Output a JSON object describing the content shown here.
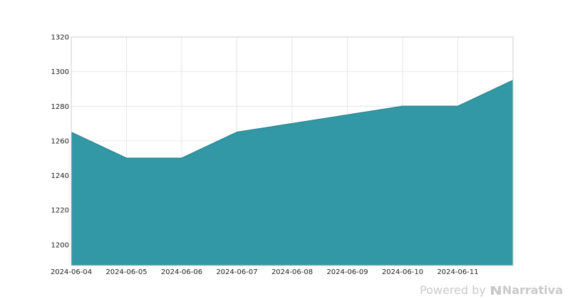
{
  "chart_data": {
    "type": "area",
    "x": [
      "2024-06-04",
      "2024-06-05",
      "2024-06-06",
      "2024-06-07",
      "2024-06-08",
      "2024-06-09",
      "2024-06-10",
      "2024-06-11",
      "2024-06-12"
    ],
    "x_tick_labels": [
      "2024-06-04",
      "2024-06-05",
      "2024-06-06",
      "2024-06-07",
      "2024-06-08",
      "2024-06-09",
      "2024-06-10",
      "2024-06-11"
    ],
    "series": [
      {
        "values": [
          1265,
          1250,
          1250,
          1265,
          1270,
          1275,
          1280,
          1280,
          1295
        ]
      }
    ],
    "ylim": [
      1188,
      1320
    ],
    "y_ticks": [
      1200,
      1220,
      1240,
      1260,
      1280,
      1300,
      1320
    ],
    "title": "",
    "xlabel": "",
    "ylabel": "",
    "grid": true,
    "fill_color": "#2f96a3",
    "line_color": "#2a8a96"
  },
  "watermark": {
    "prefix": "Powered by",
    "brand": "Narrativa"
  }
}
